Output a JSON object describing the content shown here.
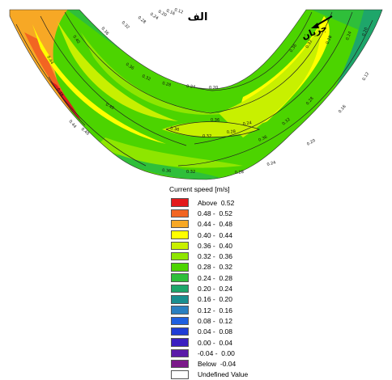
{
  "map": {
    "title": "الف",
    "flow_label": "جریان",
    "contour_labels": [
      "0.48",
      "0.44",
      "0.40",
      "0.36",
      "0.32",
      "0.28",
      "0.24",
      "0.20",
      "0.16",
      "0.12",
      "0.36",
      "0.32",
      "0.28",
      "0.24",
      "0.20",
      "0.36",
      "0.32",
      "0.28",
      "0.24",
      "0.20",
      "0.24",
      "0.28",
      "0.32",
      "0.36",
      "0.40",
      "0.36",
      "0.32",
      "0.28",
      "0.36",
      "0.44",
      "0.40",
      "0.36",
      "0.32",
      "0.28",
      "0.24",
      "0.20",
      "0.16",
      "0.12"
    ],
    "colors": {
      "above_052": "#e31a1c",
      "r048_052": "#f26522",
      "r044_048": "#f7a825",
      "r040_044": "#ffff00",
      "r036_040": "#c8f000",
      "r032_036": "#8ee600",
      "r028_032": "#4cd400",
      "r024_028": "#2fbf3a",
      "r020_024": "#1ea66a",
      "r016_020": "#1a8f8f",
      "r012_016": "#2a7fc0",
      "r008_012": "#1f5fe0",
      "r004_008": "#1f3cd6",
      "r000_004": "#3a1fc0",
      "rm004_000": "#5a1aa8",
      "below_m004": "#7b1a8a",
      "undefined": "#ffffff"
    }
  },
  "legend": {
    "title": "Current speed [m/s]",
    "items": [
      {
        "label": "Above  0.52",
        "color": "#e31a1c"
      },
      {
        "label": "0.48 -  0.52",
        "color": "#f26522"
      },
      {
        "label": "0.44 -  0.48",
        "color": "#f7a825"
      },
      {
        "label": "0.40 -  0.44",
        "color": "#ffff00"
      },
      {
        "label": "0.36 -  0.40",
        "color": "#c8f000"
      },
      {
        "label": "0.32 -  0.36",
        "color": "#8ee600"
      },
      {
        "label": "0.28 -  0.32",
        "color": "#4cd400"
      },
      {
        "label": "0.24 -  0.28",
        "color": "#2fbf3a"
      },
      {
        "label": "0.20 -  0.24",
        "color": "#1ea66a"
      },
      {
        "label": "0.16 -  0.20",
        "color": "#1a8f8f"
      },
      {
        "label": "0.12 -  0.16",
        "color": "#2a7fc0"
      },
      {
        "label": "0.08 -  0.12",
        "color": "#1f5fe0"
      },
      {
        "label": "0.04 -  0.08",
        "color": "#1f3cd6"
      },
      {
        "label": "0.00 -  0.04",
        "color": "#3a1fc0"
      },
      {
        "label": "-0.04 -  0.00",
        "color": "#5a1aa8"
      },
      {
        "label": "Below  -0.04",
        "color": "#7b1a8a"
      },
      {
        "label": "Undefined Value",
        "color": "#ffffff"
      }
    ]
  }
}
